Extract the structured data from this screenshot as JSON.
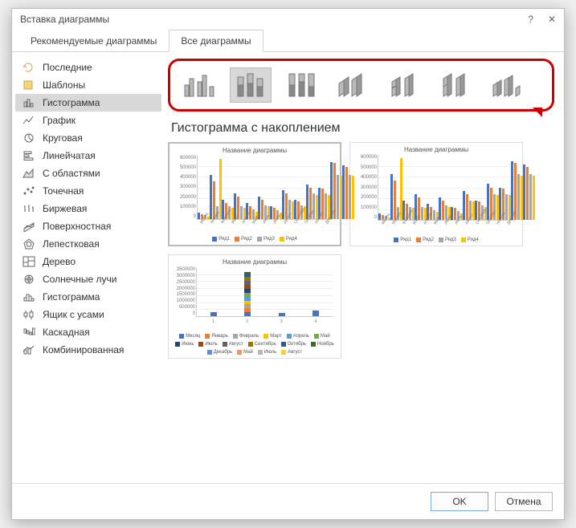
{
  "dialog": {
    "title": "Вставка диаграммы"
  },
  "tabs": {
    "recommended": "Рекомендуемые диаграммы",
    "all": "Все диаграммы"
  },
  "sidebar": {
    "items": [
      {
        "label": "Последние",
        "icon": "recent"
      },
      {
        "label": "Шаблоны",
        "icon": "templates"
      },
      {
        "label": "Гистограмма",
        "icon": "column",
        "selected": true
      },
      {
        "label": "График",
        "icon": "line"
      },
      {
        "label": "Круговая",
        "icon": "pie"
      },
      {
        "label": "Линейчатая",
        "icon": "bar"
      },
      {
        "label": "С областями",
        "icon": "area"
      },
      {
        "label": "Точечная",
        "icon": "scatter"
      },
      {
        "label": "Биржевая",
        "icon": "stock"
      },
      {
        "label": "Поверхностная",
        "icon": "surface"
      },
      {
        "label": "Лепестковая",
        "icon": "radar"
      },
      {
        "label": "Дерево",
        "icon": "treemap"
      },
      {
        "label": "Солнечные лучи",
        "icon": "sunburst"
      },
      {
        "label": "Гистограмма",
        "icon": "histogram"
      },
      {
        "label": "Ящик с усами",
        "icon": "boxwhisker"
      },
      {
        "label": "Каскадная",
        "icon": "waterfall"
      },
      {
        "label": "Комбинированная",
        "icon": "combo"
      }
    ]
  },
  "subtypes": {
    "selected_index": 1
  },
  "section": {
    "title": "Гистограмма с накоплением"
  },
  "previews": {
    "chart_title": "Название диаграммы",
    "p12": {
      "type": "clustered-bar",
      "ylim": [
        0,
        600000
      ],
      "ytick_step": 100000,
      "yticks": [
        "600000",
        "500000",
        "400000",
        "300000",
        "200000",
        "100000",
        "0"
      ],
      "categories": [
        "Месяц",
        "Январь",
        "Февраль",
        "Март",
        "Апрель",
        "Май",
        "Июнь",
        "Июль",
        "Август",
        "Сентябрь",
        "Октябрь",
        "Ноябрь",
        "Декабрь"
      ],
      "series": [
        {
          "name": "Ряд1",
          "color": "#4472c4",
          "values": [
            10,
            70,
            30,
            40,
            25,
            35,
            20,
            45,
            30,
            55,
            50,
            90,
            85
          ]
        },
        {
          "name": "Ряд2",
          "color": "#ed7d31",
          "values": [
            8,
            60,
            25,
            35,
            20,
            30,
            18,
            40,
            28,
            50,
            48,
            88,
            82
          ]
        },
        {
          "name": "Ряд3",
          "color": "#a5a5a5",
          "values": [
            6,
            20,
            20,
            20,
            15,
            22,
            14,
            30,
            22,
            40,
            40,
            70,
            70
          ]
        },
        {
          "name": "Ряд4",
          "color": "#ffc000",
          "values": [
            4,
            95,
            18,
            18,
            12,
            20,
            10,
            28,
            20,
            38,
            38,
            68,
            68
          ]
        }
      ],
      "legend_colors": [
        "#4472c4",
        "#ed7d31",
        "#a5a5a5",
        "#ffc000"
      ],
      "legend_labels": [
        "Ряд1",
        "Ряд2",
        "Ряд3",
        "Ряд4"
      ]
    },
    "p3": {
      "type": "stacked-bar",
      "ylim": [
        0,
        3500000
      ],
      "ytick_step": 500000,
      "yticks": [
        "3500000",
        "3000000",
        "2500000",
        "2000000",
        "1500000",
        "1000000",
        "500000",
        "0"
      ],
      "categories": [
        "1",
        "2",
        "3",
        "4"
      ],
      "stacks": [
        {
          "total": 8,
          "segments": [
            {
              "c": "#4472c4",
              "h": 8
            }
          ]
        },
        {
          "total": 90,
          "segments": [
            {
              "c": "#4472c4",
              "h": 8
            },
            {
              "c": "#ed7d31",
              "h": 8
            },
            {
              "c": "#a5a5a5",
              "h": 8
            },
            {
              "c": "#ffc000",
              "h": 8
            },
            {
              "c": "#5b9bd5",
              "h": 8
            },
            {
              "c": "#70ad47",
              "h": 8
            },
            {
              "c": "#264478",
              "h": 8
            },
            {
              "c": "#9e480e",
              "h": 8
            },
            {
              "c": "#636363",
              "h": 8
            },
            {
              "c": "#997300",
              "h": 8
            },
            {
              "c": "#255e91",
              "h": 6
            },
            {
              "c": "#43682b",
              "h": 4
            }
          ]
        },
        {
          "total": 6,
          "segments": [
            {
              "c": "#4472c4",
              "h": 6
            }
          ]
        },
        {
          "total": 12,
          "segments": [
            {
              "c": "#4472c4",
              "h": 12
            }
          ]
        }
      ],
      "legend": [
        {
          "c": "#4472c4",
          "l": "Месяц"
        },
        {
          "c": "#ed7d31",
          "l": "Январь"
        },
        {
          "c": "#a5a5a5",
          "l": "Февраль"
        },
        {
          "c": "#ffc000",
          "l": "Март"
        },
        {
          "c": "#5b9bd5",
          "l": "Апрель"
        },
        {
          "c": "#70ad47",
          "l": "Май"
        },
        {
          "c": "#264478",
          "l": "Июнь"
        },
        {
          "c": "#9e480e",
          "l": "Июль"
        },
        {
          "c": "#636363",
          "l": "Август"
        },
        {
          "c": "#997300",
          "l": "Сентябрь"
        },
        {
          "c": "#255e91",
          "l": "Октябрь"
        },
        {
          "c": "#43682b",
          "l": "Ноябрь"
        },
        {
          "c": "#698ed0",
          "l": "Декабрь"
        },
        {
          "c": "#f1975a",
          "l": "Май"
        },
        {
          "c": "#b7b7b7",
          "l": "Июль"
        },
        {
          "c": "#ffcd33",
          "l": "Август"
        }
      ]
    }
  },
  "colors": {
    "highlight_ring": "#c00",
    "selected_bg": "#d8d8d8"
  },
  "buttons": {
    "ok": "OK",
    "cancel": "Отмена"
  }
}
